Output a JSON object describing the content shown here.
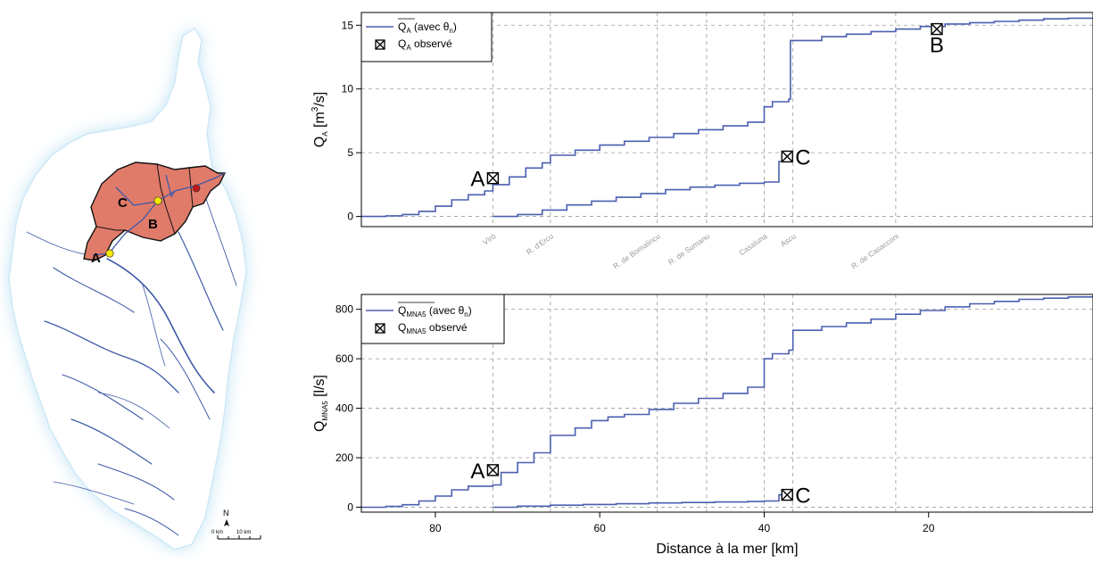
{
  "map": {
    "site_labels": [
      "A",
      "B",
      "C"
    ],
    "north_label": "N",
    "scale_labels": [
      "0 km",
      "10 km"
    ],
    "colors": {
      "catchment": "#e07b6a",
      "river": "#3f5aa8",
      "sea_glow": "#bfe3f4",
      "site_point": "#f3e600",
      "outlet_point": "#c4161c"
    }
  },
  "chart_data": [
    {
      "type": "line",
      "id": "top",
      "ylabel_main": "Q",
      "ylabel_sub": "A",
      "ylabel_unit_open": " [m",
      "ylabel_unit_sup": "3",
      "ylabel_unit_close": "/s]",
      "xlim": [
        89,
        0
      ],
      "ylim": [
        -0.8,
        16
      ],
      "yticks": [
        0,
        5,
        10,
        15
      ],
      "tributaries": [
        {
          "name": "Vìrò",
          "x": 73
        },
        {
          "name": "R. d'Ercu",
          "x": 66
        },
        {
          "name": "R. de Bomalincu",
          "x": 53
        },
        {
          "name": "R. de Sumanu",
          "x": 47
        },
        {
          "name": "Casaluna",
          "x": 40
        },
        {
          "name": "Ascu",
          "x": 36.5
        },
        {
          "name": "R. de Casacconi",
          "x": 24
        }
      ],
      "legend": {
        "line_label_main": "Q",
        "line_label_sub": "A",
        "line_label_rest": " (avec θ",
        "line_label_sub2": "n",
        "line_label_end": ")",
        "obs_label_main": "Q",
        "obs_label_sub": "A",
        "obs_label_rest": " observé"
      },
      "series": [
        {
          "points": [
            [
              89,
              0
            ],
            [
              86,
              0.05
            ],
            [
              84,
              0.15
            ],
            [
              82,
              0.4
            ],
            [
              80,
              0.8
            ],
            [
              78,
              1.3
            ],
            [
              76,
              1.7
            ],
            [
              74,
              2.0
            ],
            [
              73,
              2.5
            ],
            [
              71,
              3.1
            ],
            [
              69,
              3.8
            ],
            [
              67,
              4.2
            ],
            [
              66,
              4.8
            ],
            [
              63,
              5.2
            ],
            [
              60,
              5.6
            ],
            [
              57,
              5.9
            ],
            [
              54,
              6.2
            ],
            [
              51,
              6.5
            ],
            [
              48,
              6.8
            ],
            [
              45,
              7.1
            ],
            [
              42,
              7.4
            ],
            [
              40,
              7.6
            ],
            [
              40,
              8.6
            ],
            [
              39,
              9.0
            ],
            [
              37,
              9.2
            ],
            [
              36.8,
              9.2
            ],
            [
              36.8,
              13.8
            ],
            [
              33,
              14.1
            ],
            [
              30,
              14.3
            ],
            [
              27,
              14.5
            ],
            [
              24,
              14.7
            ],
            [
              21,
              14.9
            ],
            [
              18,
              15.1
            ],
            [
              15,
              15.2
            ],
            [
              12,
              15.3
            ],
            [
              9,
              15.4
            ],
            [
              6,
              15.5
            ],
            [
              3,
              15.55
            ],
            [
              0,
              15.6
            ]
          ]
        },
        {
          "points": [
            [
              73,
              0
            ],
            [
              70,
              0.15
            ],
            [
              67,
              0.5
            ],
            [
              64,
              0.9
            ],
            [
              61,
              1.2
            ],
            [
              58,
              1.5
            ],
            [
              55,
              1.8
            ],
            [
              52,
              2.1
            ],
            [
              49,
              2.3
            ],
            [
              46,
              2.45
            ],
            [
              43,
              2.6
            ],
            [
              40,
              2.7
            ],
            [
              38.2,
              2.8
            ],
            [
              38.2,
              4.3
            ],
            [
              37,
              4.6
            ]
          ]
        }
      ],
      "observed": [
        {
          "label": "A",
          "x": 73,
          "y": 3.0
        },
        {
          "label": "C",
          "x": 37.2,
          "y": 4.7
        },
        {
          "label": "B",
          "x": 19,
          "y": 14.7
        }
      ]
    },
    {
      "type": "line",
      "id": "bottom",
      "ylabel_main": "Q",
      "ylabel_sub": "MNA5",
      "ylabel_unit_open": " [l/s]",
      "ylabel_unit_sup": "",
      "ylabel_unit_close": "",
      "xlabel": "Distance à la mer [km]",
      "xlim": [
        89,
        0
      ],
      "ylim": [
        -20,
        860
      ],
      "xticks": [
        80,
        60,
        40,
        20
      ],
      "yticks": [
        0,
        200,
        400,
        600,
        800
      ],
      "tributary_x": [
        73,
        66,
        53,
        47,
        40,
        36.5,
        24
      ],
      "legend": {
        "line_label_main": "Q",
        "line_label_sub": "MNA5",
        "line_label_rest": " (avec θ",
        "line_label_sub2": "n",
        "line_label_end": ")",
        "obs_label_main": "Q",
        "obs_label_sub": "MNA5",
        "obs_label_rest": " observé"
      },
      "series": [
        {
          "points": [
            [
              89,
              0
            ],
            [
              86,
              3
            ],
            [
              84,
              10
            ],
            [
              82,
              25
            ],
            [
              80,
              45
            ],
            [
              78,
              70
            ],
            [
              76,
              85
            ],
            [
              73,
              90
            ],
            [
              72,
              140
            ],
            [
              70,
              180
            ],
            [
              68,
              220
            ],
            [
              66,
              290
            ],
            [
              63,
              320
            ],
            [
              61,
              350
            ],
            [
              59,
              365
            ],
            [
              57,
              375
            ],
            [
              54,
              395
            ],
            [
              51,
              420
            ],
            [
              48,
              440
            ],
            [
              45,
              460
            ],
            [
              42,
              485
            ],
            [
              40,
              500
            ],
            [
              40,
              600
            ],
            [
              39,
              620
            ],
            [
              37,
              635
            ],
            [
              36.5,
              635
            ],
            [
              36.5,
              715
            ],
            [
              33,
              730
            ],
            [
              30,
              745
            ],
            [
              27,
              760
            ],
            [
              24,
              780
            ],
            [
              21,
              795
            ],
            [
              18,
              810
            ],
            [
              15,
              822
            ],
            [
              12,
              832
            ],
            [
              9,
              840
            ],
            [
              6,
              845
            ],
            [
              3,
              850
            ],
            [
              0,
              855
            ]
          ]
        },
        {
          "points": [
            [
              73,
              0
            ],
            [
              70,
              4
            ],
            [
              66,
              8
            ],
            [
              62,
              11
            ],
            [
              58,
              14
            ],
            [
              54,
              17
            ],
            [
              50,
              19
            ],
            [
              46,
              21
            ],
            [
              42,
              23
            ],
            [
              40,
              25
            ],
            [
              38.2,
              28
            ],
            [
              38.2,
              50
            ],
            [
              37,
              55
            ]
          ]
        }
      ],
      "observed": [
        {
          "label": "A",
          "x": 73,
          "y": 150
        },
        {
          "label": "C",
          "x": 37.2,
          "y": 50
        }
      ]
    }
  ]
}
